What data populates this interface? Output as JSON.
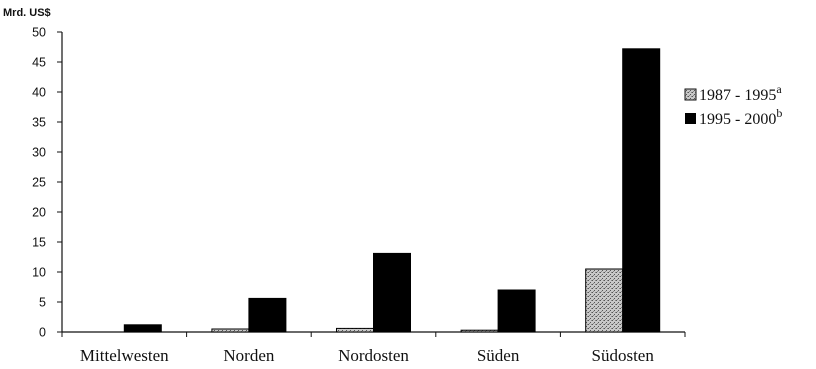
{
  "chart_data": {
    "type": "bar",
    "ylabel": "Mrd. US$",
    "ylim": [
      0,
      50
    ],
    "yticks": [
      "0",
      "5",
      "10",
      "15",
      "20",
      "25",
      "30",
      "35",
      "40",
      "45",
      "50"
    ],
    "categories": [
      "Mittelwesten",
      "Norden",
      "Nordosten",
      "Süden",
      "Südosten"
    ],
    "series": [
      {
        "name": "1987 - 1995",
        "superscript": "a",
        "color": "#bdbdbd",
        "pattern": "stipple",
        "values": [
          0,
          0.5,
          0.6,
          0.3,
          10.5
        ]
      },
      {
        "name": "1995 - 2000",
        "superscript": "b",
        "color": "#000000",
        "pattern": "solid",
        "values": [
          1.2,
          5.6,
          13.1,
          7.0,
          47.2
        ]
      }
    ],
    "grid": false,
    "legend_position": "right"
  }
}
